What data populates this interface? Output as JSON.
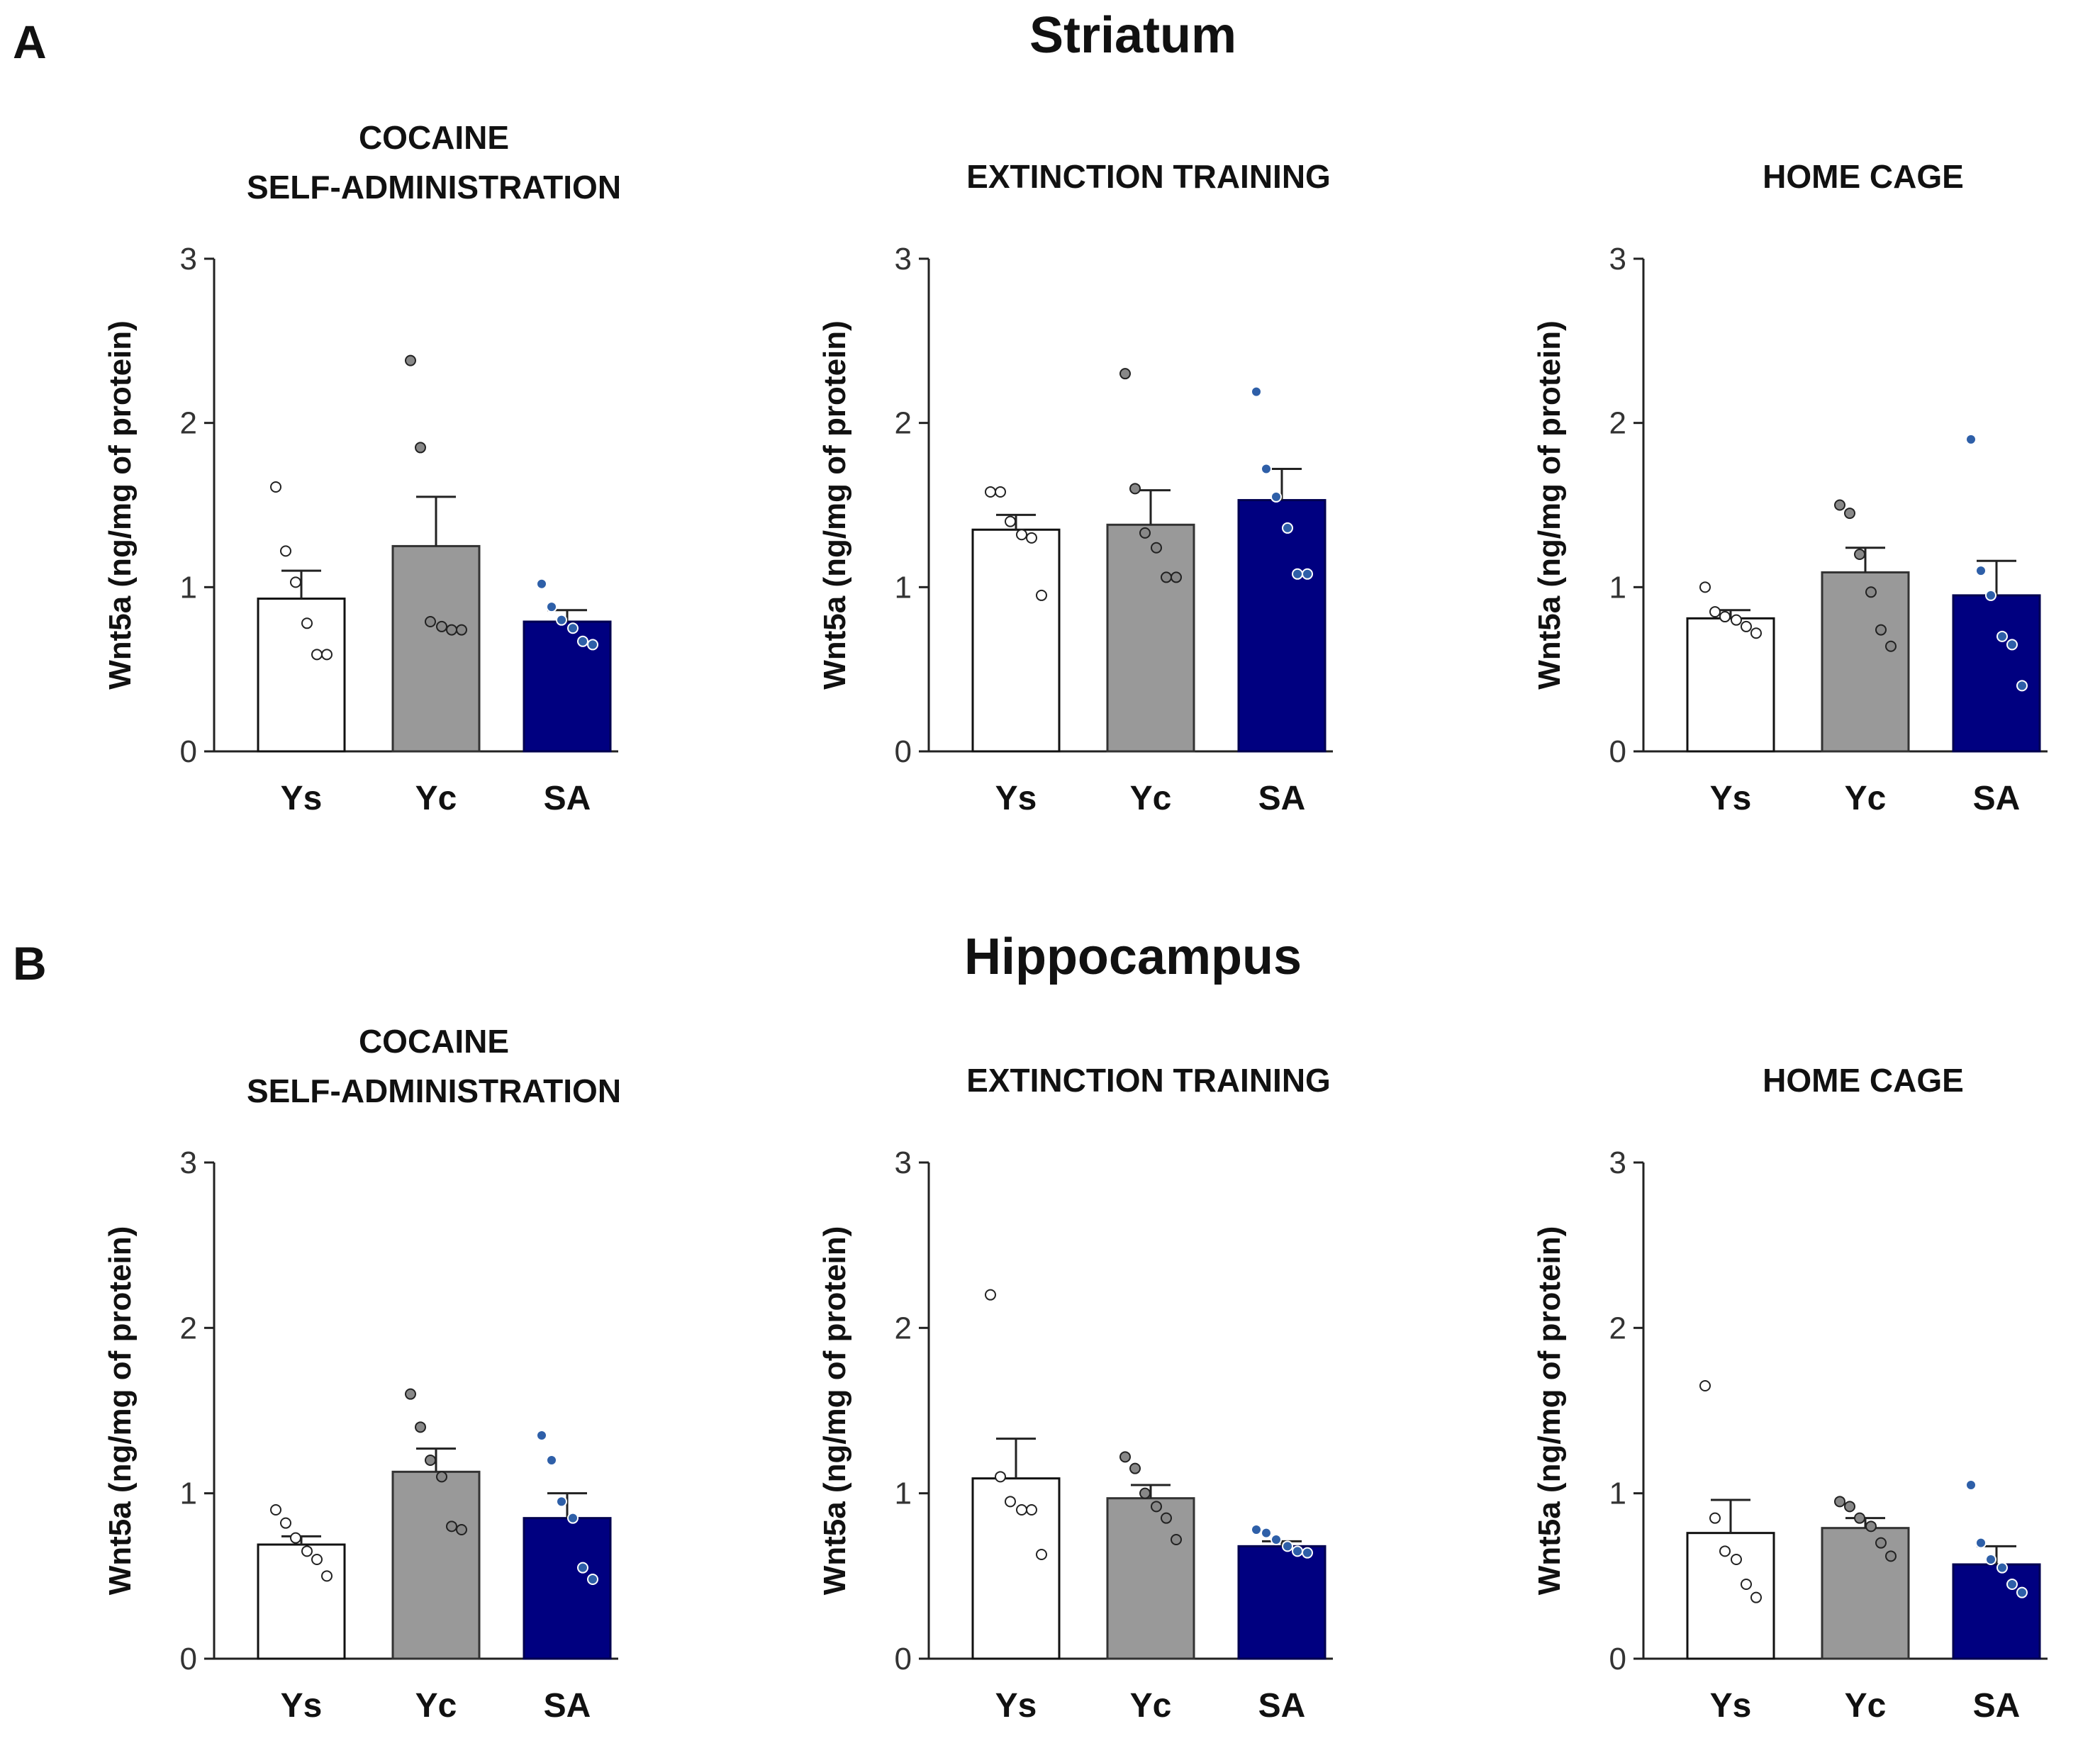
{
  "panels": [
    {
      "letter": "A",
      "title": "Striatum"
    },
    {
      "letter": "B",
      "title": "Hippocampus"
    }
  ],
  "colors": {
    "Ys": "#ffffff",
    "Yc": "#999999",
    "SA": "#000080",
    "dot_SA": "#2e5fa8"
  },
  "chart_data": [
    {
      "type": "bar",
      "panel": "A",
      "title_lines": [
        "COCAINE",
        "SELF-ADMINISTRATION"
      ],
      "categories": [
        "Ys",
        "Yc",
        "SA"
      ],
      "ylabel": "Wnt5a (ng/mg of protein)",
      "ylim": [
        0,
        3
      ],
      "yticks": [
        0,
        1,
        2,
        3
      ],
      "values": [
        0.93,
        1.25,
        0.79
      ],
      "sem": [
        0.17,
        0.3,
        0.07
      ],
      "points": [
        [
          1.61,
          1.22,
          1.03,
          0.78,
          0.59,
          0.59
        ],
        [
          2.38,
          1.85,
          0.79,
          0.76,
          0.74,
          0.74
        ],
        [
          1.02,
          0.88,
          0.8,
          0.75,
          0.67,
          0.65
        ]
      ]
    },
    {
      "type": "bar",
      "panel": "A",
      "title_lines": [
        "EXTINCTION TRAINING"
      ],
      "categories": [
        "Ys",
        "Yc",
        "SA"
      ],
      "ylabel": "Wnt5a (ng/mg of protein)",
      "ylim": [
        0,
        3
      ],
      "yticks": [
        0,
        1,
        2,
        3
      ],
      "values": [
        1.35,
        1.38,
        1.53
      ],
      "sem": [
        0.09,
        0.21,
        0.19
      ],
      "points": [
        [
          1.58,
          1.58,
          1.4,
          1.32,
          1.3,
          0.95
        ],
        [
          2.3,
          1.6,
          1.33,
          1.24,
          1.06,
          1.06
        ],
        [
          2.19,
          1.72,
          1.55,
          1.36,
          1.08,
          1.08
        ]
      ]
    },
    {
      "type": "bar",
      "panel": "A",
      "title_lines": [
        "HOME CAGE"
      ],
      "categories": [
        "Ys",
        "Yc",
        "SA"
      ],
      "ylabel": "Wnt5a (ng/mg of protein)",
      "ylim": [
        0,
        3
      ],
      "yticks": [
        0,
        1,
        2,
        3
      ],
      "values": [
        0.81,
        1.09,
        0.95
      ],
      "sem": [
        0.05,
        0.15,
        0.21
      ],
      "points": [
        [
          1.0,
          0.85,
          0.82,
          0.8,
          0.76,
          0.72
        ],
        [
          1.5,
          1.45,
          1.2,
          0.97,
          0.74,
          0.64
        ],
        [
          1.9,
          1.1,
          0.95,
          0.7,
          0.65,
          0.4
        ]
      ]
    },
    {
      "type": "bar",
      "panel": "B",
      "title_lines": [
        "COCAINE",
        "SELF-ADMINISTRATION"
      ],
      "categories": [
        "Ys",
        "Yc",
        "SA"
      ],
      "ylabel": "Wnt5a (ng/mg of protein)",
      "ylim": [
        0,
        3
      ],
      "yticks": [
        0,
        1,
        2,
        3
      ],
      "values": [
        0.69,
        1.13,
        0.85
      ],
      "sem": [
        0.05,
        0.14,
        0.15
      ],
      "points": [
        [
          0.9,
          0.82,
          0.73,
          0.65,
          0.6,
          0.5
        ],
        [
          1.6,
          1.4,
          1.2,
          1.1,
          0.8,
          0.78
        ],
        [
          1.35,
          1.2,
          0.95,
          0.85,
          0.55,
          0.48
        ]
      ]
    },
    {
      "type": "bar",
      "panel": "B",
      "title_lines": [
        "EXTINCTION TRAINING"
      ],
      "categories": [
        "Ys",
        "Yc",
        "SA"
      ],
      "ylabel": "Wnt5a (ng/mg of protein)",
      "ylim": [
        0,
        3
      ],
      "yticks": [
        0,
        1,
        2,
        3
      ],
      "values": [
        1.09,
        0.97,
        0.68
      ],
      "sem": [
        0.24,
        0.08,
        0.03
      ],
      "points": [
        [
          2.2,
          1.1,
          0.95,
          0.9,
          0.9,
          0.63
        ],
        [
          1.22,
          1.15,
          1.0,
          0.92,
          0.85,
          0.72
        ],
        [
          0.78,
          0.76,
          0.72,
          0.68,
          0.65,
          0.64
        ]
      ]
    },
    {
      "type": "bar",
      "panel": "B",
      "title_lines": [
        "HOME CAGE"
      ],
      "categories": [
        "Ys",
        "Yc",
        "SA"
      ],
      "ylabel": "Wnt5a (ng/mg of protein)",
      "ylim": [
        0,
        3
      ],
      "yticks": [
        0,
        1,
        2,
        3
      ],
      "values": [
        0.76,
        0.79,
        0.57
      ],
      "sem": [
        0.2,
        0.06,
        0.11
      ],
      "points": [
        [
          1.65,
          0.85,
          0.65,
          0.6,
          0.45,
          0.37
        ],
        [
          0.95,
          0.92,
          0.85,
          0.8,
          0.7,
          0.62
        ],
        [
          1.05,
          0.7,
          0.6,
          0.55,
          0.45,
          0.4
        ]
      ]
    }
  ]
}
